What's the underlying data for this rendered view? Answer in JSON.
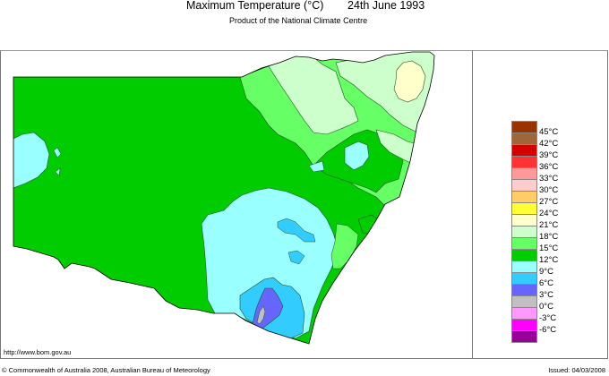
{
  "header": {
    "title": "Maximum Temperature (°C)",
    "date": "24th June 1993",
    "subtitle": "Product of the National Climate Centre"
  },
  "footer": {
    "url": "http://www.bom.gov.au",
    "copyright": "© Commonwealth of Australia 2008, Australian Bureau of Meteorology",
    "issued": "Issued: 04/03/2008"
  },
  "map": {
    "region": "New South Wales",
    "variable": "Maximum Temperature",
    "unit": "°C"
  },
  "legend": {
    "swatches": [
      {
        "color": "#993300"
      },
      {
        "color": "#a0663a"
      },
      {
        "color": "#d40000"
      },
      {
        "color": "#ff3333"
      },
      {
        "color": "#ff9999"
      },
      {
        "color": "#ffcccc"
      },
      {
        "color": "#ffcc66"
      },
      {
        "color": "#ffff33"
      },
      {
        "color": "#ffffcc"
      },
      {
        "color": "#ccffcc"
      },
      {
        "color": "#66ff66"
      },
      {
        "color": "#00cc00"
      },
      {
        "color": "#99ffff"
      },
      {
        "color": "#33ccff"
      },
      {
        "color": "#6666ff"
      },
      {
        "color": "#c0c0c0"
      },
      {
        "color": "#ff99ff"
      },
      {
        "color": "#ff00ff"
      },
      {
        "color": "#990099"
      }
    ],
    "labels": [
      "45°C",
      "42°C",
      "39°C",
      "36°C",
      "33°C",
      "30°C",
      "27°C",
      "24°C",
      "21°C",
      "18°C",
      "15°C",
      "12°C",
      "9°C",
      "6°C",
      "3°C",
      "0°C",
      "-3°C",
      "-6°C"
    ]
  },
  "colors": {
    "t12_15": "#00cc00",
    "t15_18": "#66ff66",
    "t18_21": "#ccffcc",
    "t21_24": "#ffffcc",
    "t9_12": "#99ffff",
    "t6_9": "#33ccff",
    "t3_6": "#6666ff",
    "t0_3": "#c0c0c0"
  }
}
